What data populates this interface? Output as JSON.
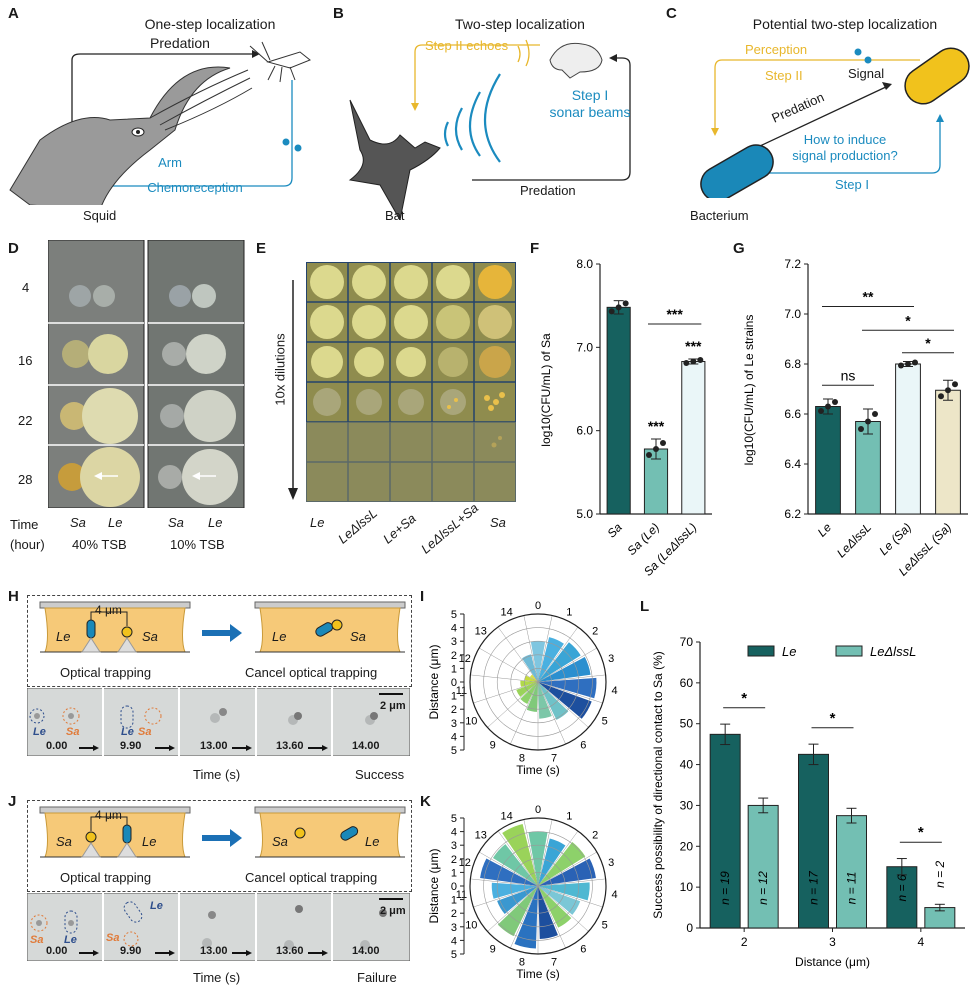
{
  "panels": {
    "A": {
      "label": "A",
      "title": "One-step localization",
      "predation": "Predation",
      "arm": "Arm",
      "chemoreception": "Chemoreception",
      "organism": "Squid"
    },
    "B": {
      "label": "B",
      "title": "Two-step localization",
      "step2": "Step II echoes",
      "step1_line1": "Step I",
      "step1_line2": "sonar beams",
      "predation": "Predation",
      "organism": "Bat"
    },
    "C": {
      "label": "C",
      "title": "Potential two-step localization",
      "perception": "Perception",
      "step2": "Step II",
      "signal": "Signal",
      "predation": "Predation",
      "question_line1": "How to induce",
      "question_line2": "signal production?",
      "step1": "Step I",
      "organism": "Bacterium"
    },
    "D": {
      "label": "D",
      "rows": [
        "4",
        "16",
        "22",
        "28"
      ],
      "time_label": "Time",
      "hour_label": "(hour)",
      "col_sa": "Sa",
      "col_le": "Le",
      "cond1": "40% TSB",
      "cond2": "10% TSB"
    },
    "E": {
      "label": "E",
      "dilutions": "10x dilutions",
      "cols": [
        "Le",
        "LeΔlssL",
        "Le+Sa",
        "LeΔlssL+Sa",
        "Sa"
      ]
    },
    "F": {
      "label": "F"
    },
    "G": {
      "label": "G"
    },
    "H": {
      "label": "H",
      "dist": "4 μm",
      "le": "Le",
      "sa": "Sa",
      "optical": "Optical trapping",
      "cancel": "Cancel optical trapping",
      "scale": "2 μm",
      "times": [
        "0.00",
        "9.90",
        "13.00",
        "13.60",
        "14.00"
      ],
      "time_axis": "Time (s)",
      "result": "Success"
    },
    "I": {
      "label": "I"
    },
    "J": {
      "label": "J",
      "dist": "4 μm",
      "le": "Le",
      "sa": "Sa",
      "optical": "Optical trapping",
      "cancel": "Cancel optical trapping",
      "scale": "2 μm",
      "times": [
        "0.00",
        "9.90",
        "13.00",
        "13.60",
        "14.00"
      ],
      "time_axis": "Time (s)",
      "result": "Failure"
    },
    "K": {
      "label": "K"
    },
    "L": {
      "label": "L"
    }
  },
  "chart_data": [
    {
      "id": "F",
      "type": "bar",
      "ylabel": "log10(CFU/mL) of Sa",
      "ylim": [
        5.0,
        8.0
      ],
      "yticks": [
        "5.0",
        "6.0",
        "7.0",
        "8.0"
      ],
      "categories": [
        "Sa",
        "Sa (Le)",
        "Sa (LeΔlssL)"
      ],
      "values": [
        7.48,
        5.78,
        6.83
      ],
      "errors": [
        0.08,
        0.12,
        0.03
      ],
      "colors": [
        "#16615f",
        "#73bfb3",
        "#eaf6f8"
      ],
      "significance": [
        "",
        "***",
        "***"
      ],
      "comparison": "***"
    },
    {
      "id": "G",
      "type": "bar",
      "ylabel": "log10(CFU/mL) of Le strains",
      "ylim": [
        6.2,
        7.2
      ],
      "yticks": [
        "6.2",
        "6.4",
        "6.6",
        "6.8",
        "7.0",
        "7.2"
      ],
      "categories": [
        "Le",
        "LeΔlssL",
        "Le (Sa)",
        "LeΔlssL (Sa)"
      ],
      "values": [
        6.63,
        6.57,
        6.8,
        6.695
      ],
      "errors": [
        0.03,
        0.05,
        0.01,
        0.04
      ],
      "colors": [
        "#16615f",
        "#73bfb3",
        "#eaf6f8",
        "#ede6c8"
      ],
      "comparisons": [
        "ns",
        "**",
        "*",
        "*"
      ]
    },
    {
      "id": "I",
      "type": "polar-bar",
      "ylabel": "Distance (μm)",
      "xlabel": "Time (s)",
      "angular_ticks": [
        "0",
        "1",
        "2",
        "3",
        "4",
        "5",
        "6",
        "7",
        "8",
        "9",
        "10",
        "11",
        "12",
        "13",
        "14"
      ],
      "radial_ticks": [
        "0",
        "1",
        "2",
        "3",
        "4",
        "5"
      ],
      "values": [
        3.0,
        3.4,
        3.7,
        3.9,
        4.3,
        4.2,
        3.1,
        2.7,
        2.2,
        1.8,
        1.7,
        1.3,
        1.0,
        0.7,
        2.1
      ]
    },
    {
      "id": "K",
      "type": "polar-bar",
      "ylabel": "Distance (μm)",
      "xlabel": "Time (s)",
      "angular_ticks": [
        "0",
        "1",
        "2",
        "3",
        "4",
        "5",
        "6",
        "7",
        "8",
        "9",
        "10",
        "11",
        "12",
        "13",
        "14"
      ],
      "radial_ticks": [
        "0",
        "1",
        "2",
        "3",
        "4",
        "5"
      ],
      "values": [
        4.0,
        3.6,
        4.1,
        4.3,
        3.8,
        3.3,
        3.4,
        3.9,
        4.6,
        4.1,
        3.2,
        3.4,
        4.3,
        3.9,
        4.7
      ]
    },
    {
      "id": "L",
      "type": "bar",
      "ylabel": "Success possibility of directional contact to Sa (%)",
      "xlabel": "Distance (μm)",
      "ylim": [
        0,
        70
      ],
      "yticks": [
        "0",
        "10",
        "20",
        "30",
        "40",
        "50",
        "60",
        "70"
      ],
      "categories": [
        "2",
        "3",
        "4"
      ],
      "series": [
        {
          "name": "Le",
          "values": [
            47.4,
            42.5,
            15.0
          ],
          "errors": [
            2.5,
            2.5,
            2.0
          ],
          "n": [
            "n = 19",
            "n = 17",
            "n = 6"
          ],
          "color": "#16615f"
        },
        {
          "name": "LeΔlssL",
          "values": [
            30.0,
            27.5,
            5.0
          ],
          "errors": [
            1.8,
            1.8,
            0.8
          ],
          "n": [
            "n = 12",
            "n = 11",
            "n = 2"
          ],
          "color": "#73bfb3"
        }
      ],
      "significance": [
        "*",
        "*",
        "*"
      ]
    }
  ]
}
